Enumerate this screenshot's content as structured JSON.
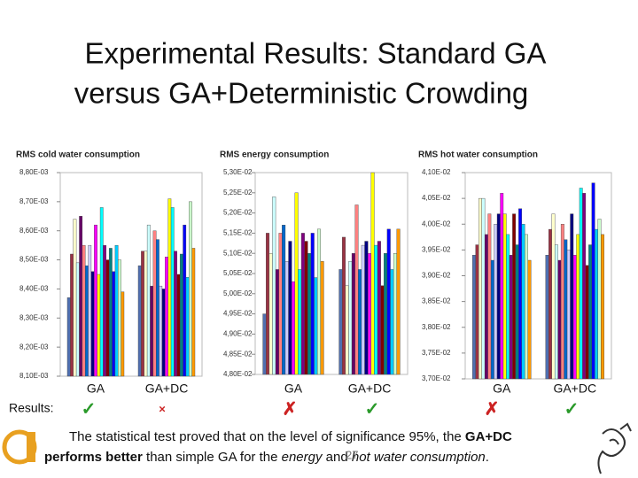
{
  "title": [
    "Experimental Results: Standard GA",
    "versus GA+Deterministic Crowding"
  ],
  "bar_colors": [
    "#4f6fb0",
    "#993344",
    "#ffffcc",
    "#ccffff",
    "#660066",
    "#ff8080",
    "#0066cc",
    "#ccccff",
    "#000080",
    "#ff00ff",
    "#ffff00",
    "#00ffff",
    "#800080",
    "#800000",
    "#008080",
    "#0000ff",
    "#00ccff",
    "#ccffcc",
    "#ff9900"
  ],
  "chart_data": [
    {
      "type": "bar",
      "title": "RMS cold water consumption",
      "categories": [
        "GA",
        "GA+DC"
      ],
      "values": [
        [
          0.00837,
          0.00852,
          0.00864,
          0.00849,
          0.00865,
          0.00855,
          0.00848,
          0.00855,
          0.00846,
          0.00862,
          0.00845,
          0.00868,
          0.00855,
          0.0085,
          0.00854,
          0.00846,
          0.00855,
          0.0085,
          0.00839
        ],
        [
          0.00848,
          0.00853,
          0.00853,
          0.00862,
          0.00841,
          0.0086,
          0.00857,
          0.00841,
          0.0084,
          0.00851,
          0.00871,
          0.00868,
          0.00853,
          0.00845,
          0.00852,
          0.00862,
          0.00844,
          0.0087,
          0.00854
        ]
      ],
      "ylim": [
        0.0081,
        0.0088
      ],
      "yticks": [
        {
          "value": 0.0081,
          "label": "8,10E-03"
        },
        {
          "value": 0.0082,
          "label": "8,20E-03"
        },
        {
          "value": 0.0083,
          "label": "8,30E-03"
        },
        {
          "value": 0.0084,
          "label": "8,40E-03"
        },
        {
          "value": 0.0085,
          "label": "8,50E-03"
        },
        {
          "value": 0.0086,
          "label": "8,60E-03"
        },
        {
          "value": 0.0087,
          "label": "8,70E-03"
        },
        {
          "value": 0.0088,
          "label": "8,80E-03"
        }
      ],
      "grid": false
    },
    {
      "type": "bar",
      "title": "RMS energy consumption",
      "categories": [
        "GA",
        "GA+DC"
      ],
      "values": [
        [
          0.0495,
          0.0515,
          0.051,
          0.0524,
          0.0506,
          0.0515,
          0.0517,
          0.0508,
          0.0513,
          0.0503,
          0.0525,
          0.0506,
          0.0515,
          0.0513,
          0.051,
          0.0515,
          0.0504,
          0.0516,
          0.0508
        ],
        [
          0.0506,
          0.0514,
          0.0502,
          0.0508,
          0.051,
          0.0522,
          0.0506,
          0.0512,
          0.0513,
          0.051,
          0.053,
          0.0512,
          0.0513,
          0.0502,
          0.051,
          0.0516,
          0.0506,
          0.051,
          0.0516
        ]
      ],
      "ylim": [
        0.048,
        0.053
      ],
      "yticks": [
        {
          "value": 0.048,
          "label": "4,80E-02"
        },
        {
          "value": 0.0485,
          "label": "4,85E-02"
        },
        {
          "value": 0.049,
          "label": "4,90E-02"
        },
        {
          "value": 0.0495,
          "label": "4,95E-02"
        },
        {
          "value": 0.05,
          "label": "5,00E-02"
        },
        {
          "value": 0.0505,
          "label": "5,05E-02"
        },
        {
          "value": 0.051,
          "label": "5,10E-02"
        },
        {
          "value": 0.0515,
          "label": "5,15E-02"
        },
        {
          "value": 0.052,
          "label": "5,20E-02"
        },
        {
          "value": 0.0525,
          "label": "5,25E-02"
        },
        {
          "value": 0.053,
          "label": "5,30E-02"
        }
      ],
      "grid": false
    },
    {
      "type": "bar",
      "title": "RMS hot water consumption",
      "categories": [
        "GA",
        "GA+DC"
      ],
      "values": [
        [
          0.0394,
          0.0396,
          0.0405,
          0.0405,
          0.0398,
          0.0402,
          0.0393,
          0.04,
          0.0402,
          0.0406,
          0.0402,
          0.0398,
          0.0394,
          0.0402,
          0.0396,
          0.0403,
          0.04,
          0.0398,
          0.0393
        ],
        [
          0.0394,
          0.0399,
          0.0402,
          0.0396,
          0.0393,
          0.04,
          0.0397,
          0.0395,
          0.0402,
          0.0394,
          0.0398,
          0.0407,
          0.0406,
          0.0392,
          0.0396,
          0.0408,
          0.0399,
          0.0401,
          0.0398
        ]
      ],
      "ylim": [
        0.037,
        0.041
      ],
      "yticks": [
        {
          "value": 0.037,
          "label": "3,70E-02"
        },
        {
          "value": 0.0375,
          "label": "3,75E-02"
        },
        {
          "value": 0.038,
          "label": "3,80E-02"
        },
        {
          "value": 0.0385,
          "label": "3,85E-02"
        },
        {
          "value": 0.039,
          "label": "3,90E-02"
        },
        {
          "value": 0.0395,
          "label": "3,95E-02"
        },
        {
          "value": 0.04,
          "label": "4,00E-02"
        },
        {
          "value": 0.0405,
          "label": "4,05E-02"
        },
        {
          "value": 0.041,
          "label": "4,10E-02"
        }
      ],
      "grid": false
    }
  ],
  "results": {
    "label": "Results:",
    "marks": [
      {
        "symbol": "✓",
        "color": "#2a9a2a"
      },
      {
        "symbol": "×",
        "color": "#cc2222"
      },
      {
        "symbol": "✗",
        "color": "#cc2222"
      },
      {
        "symbol": "✓",
        "color": "#2a9a2a"
      },
      {
        "symbol": "✗",
        "color": "#cc2222"
      },
      {
        "symbol": "✓",
        "color": "#2a9a2a"
      }
    ]
  },
  "note": {
    "lines": [
      [
        {
          "text": "The statistical test proved that on the level of significance 95%, the ",
          "style": "normal"
        },
        {
          "text": "GA+DC",
          "style": "bold"
        }
      ],
      [
        {
          "text": "performs better",
          "style": "bold"
        },
        {
          "text": " than simple GA for the ",
          "style": "normal"
        },
        {
          "text": "energy",
          "style": "italic"
        },
        {
          "text": " and ",
          "style": "normal"
        },
        {
          "text": "hot water consumption",
          "style": "italic"
        },
        {
          "text": ".",
          "style": "normal"
        }
      ]
    ],
    "page": "27"
  }
}
